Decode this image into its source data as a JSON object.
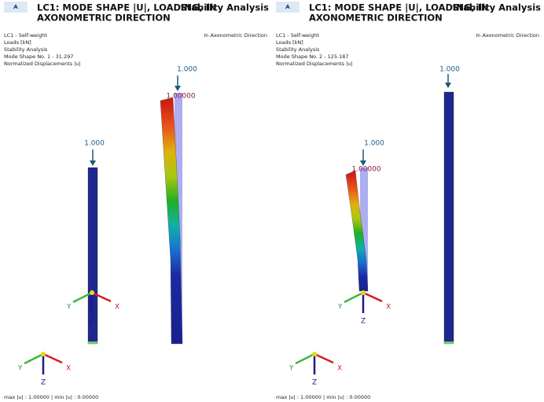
{
  "panels": [
    {
      "tab": "A",
      "title_line1": "LC1: MODE SHAPE |U|, LOADING, IN",
      "title_line2": "AXONOMETRIC DIRECTION",
      "analysis": "Stability Analysis",
      "info": [
        "LC1 - Self-weight",
        "Loads [kN]",
        "Stability Analysis",
        "Mode Shape No. 1 - 31.297",
        "Normalized Displacements |u|"
      ],
      "direction": "In Axonometric Direction",
      "load_labels": [
        "1.000",
        "1.000"
      ],
      "max_label": "1.00000",
      "axes": {
        "x": "X",
        "y": "Y",
        "z": "Z"
      },
      "footer": "max |u| : 1.00000 | min |u| : 0.00000"
    },
    {
      "tab": "A",
      "title_line1": "LC1: MODE SHAPE |U|, LOADING, IN",
      "title_line2": "AXONOMETRIC DIRECTION",
      "analysis": "Stability Analysis",
      "info": [
        "LC1 - Self-weight",
        "Loads [kN]",
        "Stability Analysis",
        "Mode Shape No. 2 - 125.187",
        "Normalized Displacements |u|"
      ],
      "direction": "In Axonometric Direction",
      "load_labels": [
        "1.000",
        "1.000"
      ],
      "max_label": "1.00000",
      "axes": {
        "x": "X",
        "y": "Y",
        "z": "Z"
      },
      "footer": "max |u| : 1.00000 | min |u| : 0.00000"
    }
  ]
}
